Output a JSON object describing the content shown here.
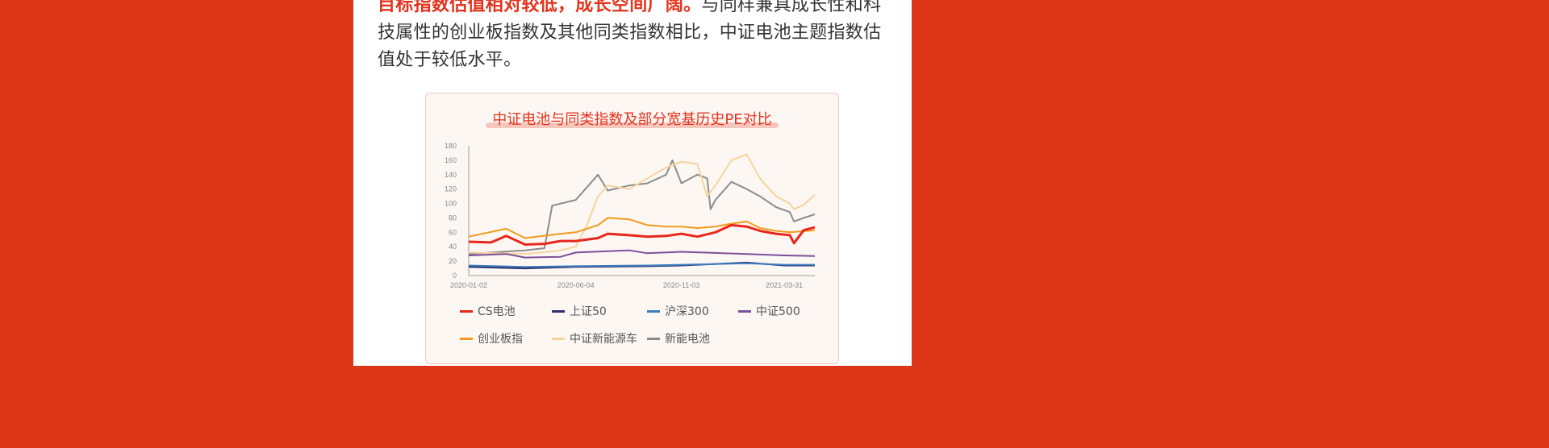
{
  "paragraph": {
    "highlight": "目标指数估值相对较低，成长空间广阔。",
    "line1_rest": "与同样兼具成长性和科",
    "line2": "技属性的创业板指数及其他同类指数相比，中证电池主题指数估",
    "line3": "值处于较低水平。"
  },
  "chart_data": {
    "type": "line",
    "title": "中证电池与同类指数及部分宽基历史PE对比",
    "ylim": [
      0,
      180
    ],
    "yticks": [
      0,
      20,
      40,
      60,
      80,
      100,
      120,
      140,
      160,
      180
    ],
    "xticks": [
      "2020-01-02",
      "2020-06-04",
      "2020-11-03",
      "2021-03-31"
    ],
    "xrange": [
      "2020-01-02",
      "2021-05-14"
    ],
    "grid": false,
    "legend_position": "bottom",
    "series": [
      {
        "name": "CS电池",
        "color": "#e8271c",
        "points": [
          [
            "2020-01-02",
            47
          ],
          [
            "2020-02-03",
            46
          ],
          [
            "2020-02-25",
            55
          ],
          [
            "2020-03-23",
            43
          ],
          [
            "2020-04-20",
            44
          ],
          [
            "2020-05-13",
            48
          ],
          [
            "2020-06-04",
            48
          ],
          [
            "2020-07-06",
            52
          ],
          [
            "2020-07-20",
            58
          ],
          [
            "2020-08-20",
            56
          ],
          [
            "2020-09-15",
            54
          ],
          [
            "2020-10-12",
            55
          ],
          [
            "2020-11-03",
            58
          ],
          [
            "2020-11-26",
            54
          ],
          [
            "2020-12-22",
            60
          ],
          [
            "2021-01-14",
            70
          ],
          [
            "2021-02-05",
            68
          ],
          [
            "2021-02-24",
            62
          ],
          [
            "2021-03-19",
            58
          ],
          [
            "2021-04-08",
            56
          ],
          [
            "2021-04-14",
            45
          ],
          [
            "2021-04-28",
            63
          ],
          [
            "2021-05-14",
            67
          ]
        ]
      },
      {
        "name": "上证50",
        "color": "#2e2e6b",
        "points": [
          [
            "2020-01-02",
            12
          ],
          [
            "2020-03-23",
            10
          ],
          [
            "2020-06-04",
            12
          ],
          [
            "2020-09-15",
            13
          ],
          [
            "2020-11-03",
            14
          ],
          [
            "2021-02-05",
            18
          ],
          [
            "2021-03-31",
            14
          ],
          [
            "2021-05-14",
            14
          ]
        ]
      },
      {
        "name": "沪深300",
        "color": "#3a7cc0",
        "points": [
          [
            "2020-01-02",
            14
          ],
          [
            "2020-03-23",
            12
          ],
          [
            "2020-06-04",
            13
          ],
          [
            "2020-09-15",
            14
          ],
          [
            "2020-11-03",
            15
          ],
          [
            "2021-02-05",
            17
          ],
          [
            "2021-03-31",
            15
          ],
          [
            "2021-05-14",
            15
          ]
        ]
      },
      {
        "name": "中证500",
        "color": "#7d4f9c",
        "points": [
          [
            "2020-01-02",
            28
          ],
          [
            "2020-02-25",
            30
          ],
          [
            "2020-03-23",
            25
          ],
          [
            "2020-05-13",
            26
          ],
          [
            "2020-06-04",
            32
          ],
          [
            "2020-08-20",
            35
          ],
          [
            "2020-09-15",
            31
          ],
          [
            "2020-11-03",
            33
          ],
          [
            "2021-02-05",
            30
          ],
          [
            "2021-03-31",
            28
          ],
          [
            "2021-05-14",
            27
          ]
        ]
      },
      {
        "name": "创业板指",
        "color": "#f39a1c",
        "points": [
          [
            "2020-01-02",
            54
          ],
          [
            "2020-02-25",
            65
          ],
          [
            "2020-03-23",
            52
          ],
          [
            "2020-05-13",
            58
          ],
          [
            "2020-06-04",
            60
          ],
          [
            "2020-07-06",
            70
          ],
          [
            "2020-07-20",
            80
          ],
          [
            "2020-08-20",
            78
          ],
          [
            "2020-09-15",
            70
          ],
          [
            "2020-10-12",
            68
          ],
          [
            "2020-11-03",
            68
          ],
          [
            "2020-11-26",
            66
          ],
          [
            "2020-12-22",
            68
          ],
          [
            "2021-01-14",
            72
          ],
          [
            "2021-02-05",
            75
          ],
          [
            "2021-02-24",
            66
          ],
          [
            "2021-03-19",
            62
          ],
          [
            "2021-04-08",
            60
          ],
          [
            "2021-05-14",
            63
          ]
        ]
      },
      {
        "name": "中证新能源车",
        "color": "#f7d49a",
        "points": [
          [
            "2020-01-02",
            32
          ],
          [
            "2020-03-23",
            30
          ],
          [
            "2020-05-13",
            35
          ],
          [
            "2020-06-04",
            40
          ],
          [
            "2020-06-20",
            70
          ],
          [
            "2020-07-06",
            110
          ],
          [
            "2020-07-20",
            125
          ],
          [
            "2020-08-20",
            120
          ],
          [
            "2020-09-15",
            135
          ],
          [
            "2020-10-12",
            150
          ],
          [
            "2020-11-03",
            158
          ],
          [
            "2020-11-26",
            155
          ],
          [
            "2020-12-10",
            110
          ],
          [
            "2020-12-22",
            125
          ],
          [
            "2021-01-14",
            160
          ],
          [
            "2021-02-05",
            168
          ],
          [
            "2021-02-24",
            135
          ],
          [
            "2021-03-19",
            110
          ],
          [
            "2021-04-08",
            100
          ],
          [
            "2021-04-14",
            92
          ],
          [
            "2021-04-28",
            98
          ],
          [
            "2021-05-14",
            112
          ]
        ]
      },
      {
        "name": "新能电池",
        "color": "#8c8c8c",
        "points": [
          [
            "2020-01-02",
            30
          ],
          [
            "2020-03-23",
            35
          ],
          [
            "2020-04-20",
            38
          ],
          [
            "2020-05-01",
            97
          ],
          [
            "2020-06-04",
            105
          ],
          [
            "2020-07-06",
            140
          ],
          [
            "2020-07-20",
            118
          ],
          [
            "2020-08-20",
            125
          ],
          [
            "2020-09-15",
            128
          ],
          [
            "2020-10-12",
            140
          ],
          [
            "2020-10-21",
            160
          ],
          [
            "2020-11-03",
            128
          ],
          [
            "2020-11-26",
            140
          ],
          [
            "2020-12-10",
            135
          ],
          [
            "2020-12-15",
            92
          ],
          [
            "2020-12-22",
            105
          ],
          [
            "2021-01-14",
            130
          ],
          [
            "2021-02-05",
            120
          ],
          [
            "2021-02-24",
            110
          ],
          [
            "2021-03-19",
            95
          ],
          [
            "2021-04-08",
            88
          ],
          [
            "2021-04-14",
            75
          ],
          [
            "2021-04-28",
            80
          ],
          [
            "2021-05-14",
            85
          ]
        ]
      }
    ]
  }
}
